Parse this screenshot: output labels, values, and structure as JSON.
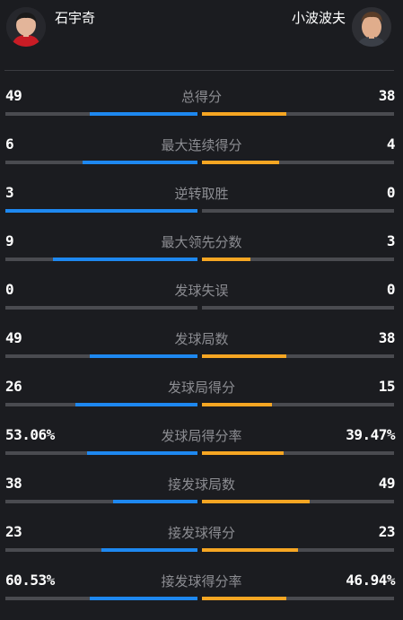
{
  "players": {
    "left": {
      "name": "石宇奇",
      "bar_color": "#1e88f0"
    },
    "right": {
      "name": "小波波夫",
      "bar_color": "#f6a623"
    }
  },
  "stats": [
    {
      "label": "总得分",
      "left": "49",
      "right": "38",
      "left_ratio": 0.563,
      "right_ratio": 0.437
    },
    {
      "label": "最大连续得分",
      "left": "6",
      "right": "4",
      "left_ratio": 0.6,
      "right_ratio": 0.4
    },
    {
      "label": "逆转取胜",
      "left": "3",
      "right": "0",
      "left_ratio": 1.0,
      "right_ratio": 0.0
    },
    {
      "label": "最大领先分数",
      "left": "9",
      "right": "3",
      "left_ratio": 0.75,
      "right_ratio": 0.25
    },
    {
      "label": "发球失误",
      "left": "0",
      "right": "0",
      "left_ratio": 0.0,
      "right_ratio": 0.0
    },
    {
      "label": "发球局数",
      "left": "49",
      "right": "38",
      "left_ratio": 0.563,
      "right_ratio": 0.437
    },
    {
      "label": "发球局得分",
      "left": "26",
      "right": "15",
      "left_ratio": 0.634,
      "right_ratio": 0.366
    },
    {
      "label": "发球局得分率",
      "left": "53.06%",
      "right": "39.47%",
      "left_ratio": 0.573,
      "right_ratio": 0.427
    },
    {
      "label": "接发球局数",
      "left": "38",
      "right": "49",
      "left_ratio": 0.437,
      "right_ratio": 0.563
    },
    {
      "label": "接发球得分",
      "left": "23",
      "right": "23",
      "left_ratio": 0.5,
      "right_ratio": 0.5
    },
    {
      "label": "接发球得分率",
      "left": "60.53%",
      "right": "46.94%",
      "left_ratio": 0.563,
      "right_ratio": 0.437
    }
  ]
}
